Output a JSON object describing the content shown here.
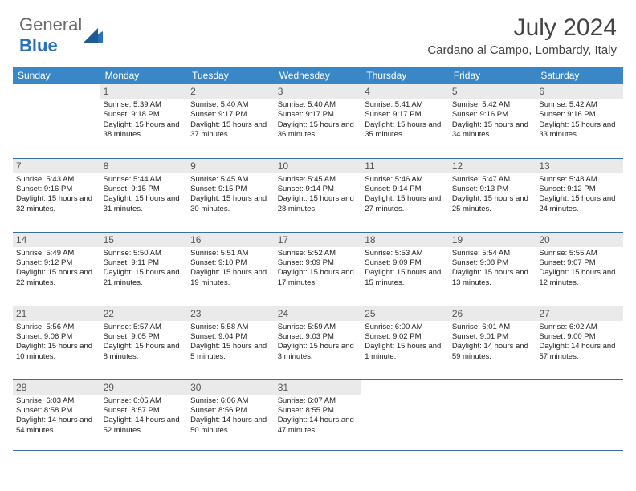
{
  "logo": {
    "part1": "General",
    "part2": "Blue"
  },
  "title": "July 2024",
  "location": "Cardano al Campo, Lombardy, Italy",
  "colors": {
    "header_bg": "#3a87c8",
    "header_text": "#ffffff",
    "daynum_bg": "#eaeaea",
    "border": "#3a6ea5",
    "logo_gray": "#6b6b6b",
    "logo_blue": "#2a70b8"
  },
  "weekdays": [
    "Sunday",
    "Monday",
    "Tuesday",
    "Wednesday",
    "Thursday",
    "Friday",
    "Saturday"
  ],
  "first_day_index": 1,
  "days": [
    {
      "n": 1,
      "sr": "5:39 AM",
      "ss": "9:18 PM",
      "dl": "15 hours and 38 minutes."
    },
    {
      "n": 2,
      "sr": "5:40 AM",
      "ss": "9:17 PM",
      "dl": "15 hours and 37 minutes."
    },
    {
      "n": 3,
      "sr": "5:40 AM",
      "ss": "9:17 PM",
      "dl": "15 hours and 36 minutes."
    },
    {
      "n": 4,
      "sr": "5:41 AM",
      "ss": "9:17 PM",
      "dl": "15 hours and 35 minutes."
    },
    {
      "n": 5,
      "sr": "5:42 AM",
      "ss": "9:16 PM",
      "dl": "15 hours and 34 minutes."
    },
    {
      "n": 6,
      "sr": "5:42 AM",
      "ss": "9:16 PM",
      "dl": "15 hours and 33 minutes."
    },
    {
      "n": 7,
      "sr": "5:43 AM",
      "ss": "9:16 PM",
      "dl": "15 hours and 32 minutes."
    },
    {
      "n": 8,
      "sr": "5:44 AM",
      "ss": "9:15 PM",
      "dl": "15 hours and 31 minutes."
    },
    {
      "n": 9,
      "sr": "5:45 AM",
      "ss": "9:15 PM",
      "dl": "15 hours and 30 minutes."
    },
    {
      "n": 10,
      "sr": "5:45 AM",
      "ss": "9:14 PM",
      "dl": "15 hours and 28 minutes."
    },
    {
      "n": 11,
      "sr": "5:46 AM",
      "ss": "9:14 PM",
      "dl": "15 hours and 27 minutes."
    },
    {
      "n": 12,
      "sr": "5:47 AM",
      "ss": "9:13 PM",
      "dl": "15 hours and 25 minutes."
    },
    {
      "n": 13,
      "sr": "5:48 AM",
      "ss": "9:12 PM",
      "dl": "15 hours and 24 minutes."
    },
    {
      "n": 14,
      "sr": "5:49 AM",
      "ss": "9:12 PM",
      "dl": "15 hours and 22 minutes."
    },
    {
      "n": 15,
      "sr": "5:50 AM",
      "ss": "9:11 PM",
      "dl": "15 hours and 21 minutes."
    },
    {
      "n": 16,
      "sr": "5:51 AM",
      "ss": "9:10 PM",
      "dl": "15 hours and 19 minutes."
    },
    {
      "n": 17,
      "sr": "5:52 AM",
      "ss": "9:09 PM",
      "dl": "15 hours and 17 minutes."
    },
    {
      "n": 18,
      "sr": "5:53 AM",
      "ss": "9:09 PM",
      "dl": "15 hours and 15 minutes."
    },
    {
      "n": 19,
      "sr": "5:54 AM",
      "ss": "9:08 PM",
      "dl": "15 hours and 13 minutes."
    },
    {
      "n": 20,
      "sr": "5:55 AM",
      "ss": "9:07 PM",
      "dl": "15 hours and 12 minutes."
    },
    {
      "n": 21,
      "sr": "5:56 AM",
      "ss": "9:06 PM",
      "dl": "15 hours and 10 minutes."
    },
    {
      "n": 22,
      "sr": "5:57 AM",
      "ss": "9:05 PM",
      "dl": "15 hours and 8 minutes."
    },
    {
      "n": 23,
      "sr": "5:58 AM",
      "ss": "9:04 PM",
      "dl": "15 hours and 5 minutes."
    },
    {
      "n": 24,
      "sr": "5:59 AM",
      "ss": "9:03 PM",
      "dl": "15 hours and 3 minutes."
    },
    {
      "n": 25,
      "sr": "6:00 AM",
      "ss": "9:02 PM",
      "dl": "15 hours and 1 minute."
    },
    {
      "n": 26,
      "sr": "6:01 AM",
      "ss": "9:01 PM",
      "dl": "14 hours and 59 minutes."
    },
    {
      "n": 27,
      "sr": "6:02 AM",
      "ss": "9:00 PM",
      "dl": "14 hours and 57 minutes."
    },
    {
      "n": 28,
      "sr": "6:03 AM",
      "ss": "8:58 PM",
      "dl": "14 hours and 54 minutes."
    },
    {
      "n": 29,
      "sr": "6:05 AM",
      "ss": "8:57 PM",
      "dl": "14 hours and 52 minutes."
    },
    {
      "n": 30,
      "sr": "6:06 AM",
      "ss": "8:56 PM",
      "dl": "14 hours and 50 minutes."
    },
    {
      "n": 31,
      "sr": "6:07 AM",
      "ss": "8:55 PM",
      "dl": "14 hours and 47 minutes."
    }
  ],
  "labels": {
    "sunrise": "Sunrise:",
    "sunset": "Sunset:",
    "daylight": "Daylight:"
  }
}
